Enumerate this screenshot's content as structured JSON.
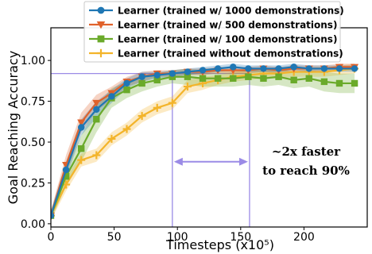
{
  "chart_data": {
    "type": "line",
    "title": "",
    "xlabel": "Timesteps (x10⁵)",
    "ylabel": "Goal Reaching Accuracy",
    "xlim": [
      0,
      250
    ],
    "ylim": [
      -0.02,
      1.2
    ],
    "xticks": [
      0,
      50,
      100,
      150,
      200
    ],
    "yticks": [
      0.0,
      0.25,
      0.5,
      0.75,
      1.0
    ],
    "xtick_labels": [
      "0",
      "50",
      "100",
      "150",
      "200"
    ],
    "ytick_labels": [
      "0.00",
      "0.25",
      "0.50",
      "0.75",
      "1.00"
    ],
    "grid": false,
    "legend_position": "top-center",
    "series": [
      {
        "name": "Learner (trained w/ 1000 demonstrations)",
        "color": "#1f77b4",
        "marker": "circle",
        "x": [
          0,
          12,
          24,
          36,
          48,
          60,
          72,
          84,
          96,
          108,
          120,
          132,
          144,
          156,
          168,
          180,
          192,
          204,
          216,
          228,
          240
        ],
        "y": [
          0.05,
          0.33,
          0.59,
          0.7,
          0.78,
          0.86,
          0.9,
          0.91,
          0.92,
          0.93,
          0.94,
          0.95,
          0.96,
          0.95,
          0.95,
          0.95,
          0.96,
          0.95,
          0.95,
          0.95,
          0.95
        ],
        "band": [
          0.03,
          0.05,
          0.05,
          0.05,
          0.04,
          0.03,
          0.03,
          0.02,
          0.02,
          0.02,
          0.02,
          0.02,
          0.02,
          0.02,
          0.02,
          0.02,
          0.02,
          0.02,
          0.02,
          0.02,
          0.02
        ]
      },
      {
        "name": "Learner (trained w/ 500 demonstrations)",
        "color": "#e0622b",
        "marker": "triangle-down",
        "x": [
          0,
          12,
          24,
          36,
          48,
          60,
          72,
          84,
          96,
          108,
          120,
          132,
          144,
          156,
          168,
          180,
          192,
          204,
          216,
          228,
          240
        ],
        "y": [
          0.05,
          0.36,
          0.62,
          0.74,
          0.8,
          0.87,
          0.9,
          0.92,
          0.92,
          0.93,
          0.93,
          0.94,
          0.94,
          0.94,
          0.95,
          0.94,
          0.95,
          0.95,
          0.95,
          0.96,
          0.96
        ],
        "band": [
          0.03,
          0.06,
          0.06,
          0.05,
          0.04,
          0.03,
          0.03,
          0.02,
          0.02,
          0.02,
          0.02,
          0.02,
          0.02,
          0.02,
          0.02,
          0.02,
          0.02,
          0.02,
          0.02,
          0.02,
          0.02
        ]
      },
      {
        "name": "Learner (trained w/ 100 demonstrations)",
        "color": "#6aaa2a",
        "marker": "square",
        "x": [
          0,
          12,
          24,
          36,
          48,
          60,
          72,
          84,
          96,
          108,
          120,
          132,
          144,
          156,
          168,
          180,
          192,
          204,
          216,
          228,
          240
        ],
        "y": [
          0.05,
          0.29,
          0.46,
          0.64,
          0.77,
          0.82,
          0.86,
          0.88,
          0.9,
          0.9,
          0.89,
          0.89,
          0.89,
          0.9,
          0.89,
          0.9,
          0.88,
          0.89,
          0.87,
          0.86,
          0.86
        ],
        "band": [
          0.03,
          0.06,
          0.08,
          0.08,
          0.06,
          0.05,
          0.05,
          0.04,
          0.04,
          0.05,
          0.05,
          0.05,
          0.05,
          0.05,
          0.05,
          0.05,
          0.05,
          0.05,
          0.06,
          0.06,
          0.06
        ]
      },
      {
        "name": "Learner (trained without demonstrations)",
        "color": "#f3b42a",
        "marker": "plus",
        "x": [
          0,
          12,
          24,
          36,
          48,
          60,
          72,
          84,
          96,
          108,
          120,
          132,
          144,
          156,
          168,
          180,
          192,
          204,
          216,
          228,
          240
        ],
        "y": [
          0.05,
          0.24,
          0.39,
          0.42,
          0.52,
          0.58,
          0.66,
          0.71,
          0.74,
          0.84,
          0.86,
          0.88,
          0.9,
          0.91,
          0.92,
          0.92,
          0.93,
          0.93,
          0.93,
          0.94,
          0.95
        ],
        "band": [
          0.03,
          0.04,
          0.04,
          0.04,
          0.04,
          0.04,
          0.04,
          0.04,
          0.04,
          0.04,
          0.04,
          0.03,
          0.03,
          0.03,
          0.03,
          0.03,
          0.03,
          0.03,
          0.03,
          0.03,
          0.03
        ]
      }
    ],
    "reference_lines": {
      "color": "#9b8be6",
      "threshold_y": 0.92,
      "fast_x": 96,
      "slow_x": 157
    },
    "annotation": {
      "line1": "~2x faster",
      "line2": "to reach 90%",
      "arrow_from_x": 96,
      "arrow_to_x": 157,
      "arrow_y": 0.38,
      "color": "#9b8be6"
    }
  }
}
